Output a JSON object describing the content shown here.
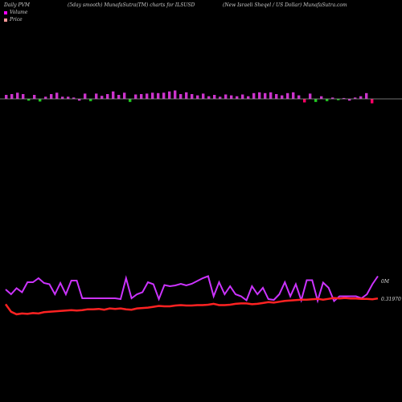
{
  "header": {
    "left": "Daily PVM",
    "center": "(5day smooth) MunafaSutra(TM) charts for ILSUSD",
    "right": "(New Israeli Sheqel / US Dollar) MunafaSutra.com"
  },
  "legend": [
    {
      "label": "Volume",
      "color": "#ff00ff"
    },
    {
      "label": "Price",
      "color": "#ff9999"
    }
  ],
  "labels": {
    "volume_right": "0M",
    "price_right": "0.31970"
  },
  "colors": {
    "background": "#000000",
    "volume_up": "#cc33cc",
    "volume_down": "#22cc22",
    "volume_red": "#ff0066",
    "baseline": "#999999",
    "volume_line": "#cc33ff",
    "price_line": "#ff2222"
  },
  "chart_data": {
    "type": "bar+line",
    "bars": [
      {
        "v": 0.9,
        "c": "up"
      },
      {
        "v": 1.1,
        "c": "up"
      },
      {
        "v": 1.4,
        "c": "up"
      },
      {
        "v": 1.1,
        "c": "up"
      },
      {
        "v": -0.4,
        "c": "down"
      },
      {
        "v": 0.9,
        "c": "up"
      },
      {
        "v": -0.6,
        "c": "down"
      },
      {
        "v": 0.5,
        "c": "up"
      },
      {
        "v": 1.1,
        "c": "up"
      },
      {
        "v": 1.4,
        "c": "up"
      },
      {
        "v": 0.5,
        "c": "up"
      },
      {
        "v": 0.5,
        "c": "up"
      },
      {
        "v": 0.3,
        "c": "up"
      },
      {
        "v": -0.4,
        "c": "up"
      },
      {
        "v": 1.2,
        "c": "up"
      },
      {
        "v": -0.5,
        "c": "down"
      },
      {
        "v": 1.2,
        "c": "up"
      },
      {
        "v": 0.7,
        "c": "up"
      },
      {
        "v": 1.1,
        "c": "up"
      },
      {
        "v": 1.7,
        "c": "up"
      },
      {
        "v": 0.9,
        "c": "up"
      },
      {
        "v": 1.4,
        "c": "up"
      },
      {
        "v": -0.7,
        "c": "down"
      },
      {
        "v": 1.0,
        "c": "up"
      },
      {
        "v": 1.1,
        "c": "up"
      },
      {
        "v": 1.2,
        "c": "up"
      },
      {
        "v": 1.4,
        "c": "up"
      },
      {
        "v": 1.3,
        "c": "up"
      },
      {
        "v": 1.4,
        "c": "up"
      },
      {
        "v": 1.7,
        "c": "up"
      },
      {
        "v": 1.9,
        "c": "up"
      },
      {
        "v": 1.1,
        "c": "up"
      },
      {
        "v": 1.5,
        "c": "up"
      },
      {
        "v": 1.1,
        "c": "up"
      },
      {
        "v": 0.8,
        "c": "up"
      },
      {
        "v": 1.2,
        "c": "up"
      },
      {
        "v": 0.6,
        "c": "up"
      },
      {
        "v": 0.9,
        "c": "up"
      },
      {
        "v": 0.5,
        "c": "up"
      },
      {
        "v": 1.0,
        "c": "up"
      },
      {
        "v": 0.8,
        "c": "up"
      },
      {
        "v": 0.6,
        "c": "up"
      },
      {
        "v": 1.0,
        "c": "up"
      },
      {
        "v": 0.6,
        "c": "up"
      },
      {
        "v": 1.3,
        "c": "up"
      },
      {
        "v": 1.5,
        "c": "up"
      },
      {
        "v": 1.3,
        "c": "up"
      },
      {
        "v": 1.5,
        "c": "up"
      },
      {
        "v": 1.1,
        "c": "up"
      },
      {
        "v": 0.8,
        "c": "up"
      },
      {
        "v": 1.3,
        "c": "up"
      },
      {
        "v": 1.5,
        "c": "up"
      },
      {
        "v": 0.8,
        "c": "up"
      },
      {
        "v": -0.8,
        "c": "red"
      },
      {
        "v": 1.2,
        "c": "up"
      },
      {
        "v": -0.7,
        "c": "down"
      },
      {
        "v": 0.6,
        "c": "up"
      },
      {
        "v": -0.5,
        "c": "down"
      },
      {
        "v": 0.3,
        "c": "up"
      },
      {
        "v": -0.3,
        "c": "down"
      },
      {
        "v": 0.2,
        "c": "up"
      },
      {
        "v": -0.4,
        "c": "up"
      },
      {
        "v": 0.3,
        "c": "up"
      },
      {
        "v": 0.6,
        "c": "up"
      },
      {
        "v": 1.3,
        "c": "up"
      },
      {
        "v": -1.0,
        "c": "red"
      }
    ],
    "volume_line": [
      3.2,
      2.0,
      3.5,
      2.5,
      5.0,
      5.0,
      6.0,
      4.8,
      4.5,
      2.0,
      4.8,
      2.0,
      5.4,
      5.4,
      1.0,
      1.0,
      1.0,
      1.0,
      1.0,
      1.0,
      1.0,
      0.8,
      6.0,
      1.0,
      2.0,
      2.5,
      5.0,
      4.5,
      0.8,
      4.3,
      4.0,
      4.2,
      4.6,
      4.2,
      4.6,
      5.3,
      6.0,
      6.5,
      1.5,
      5.0,
      2.0,
      4.0,
      2.0,
      1.5,
      0.5,
      4.0,
      2.0,
      3.6,
      0.8,
      0.6,
      2.0,
      5.0,
      1.5,
      4.5,
      0.5,
      5.5,
      5.5,
      0.4,
      4.9,
      3.6,
      0.3,
      1.5,
      1.5,
      1.5,
      1.5,
      1.0,
      2.0,
      4.5,
      6.5
    ],
    "price_line": [
      2.8,
      1.0,
      0.4,
      0.6,
      0.5,
      0.7,
      0.6,
      0.9,
      1.0,
      1.1,
      1.2,
      1.3,
      1.4,
      1.3,
      1.4,
      1.6,
      1.6,
      1.7,
      1.5,
      1.8,
      1.7,
      1.8,
      1.6,
      1.5,
      1.8,
      1.9,
      2.0,
      2.2,
      2.4,
      2.3,
      2.3,
      2.5,
      2.6,
      2.5,
      2.5,
      2.6,
      2.6,
      2.7,
      2.9,
      2.6,
      2.6,
      2.7,
      2.9,
      3.0,
      3.0,
      2.8,
      2.9,
      3.1,
      3.3,
      3.2,
      3.4,
      3.6,
      3.7,
      3.8,
      3.9,
      3.9,
      4.0,
      4.1,
      3.9,
      4.1,
      4.3,
      4.2,
      4.3,
      4.2,
      4.2,
      4.1,
      4.1,
      4.0,
      4.2
    ]
  }
}
